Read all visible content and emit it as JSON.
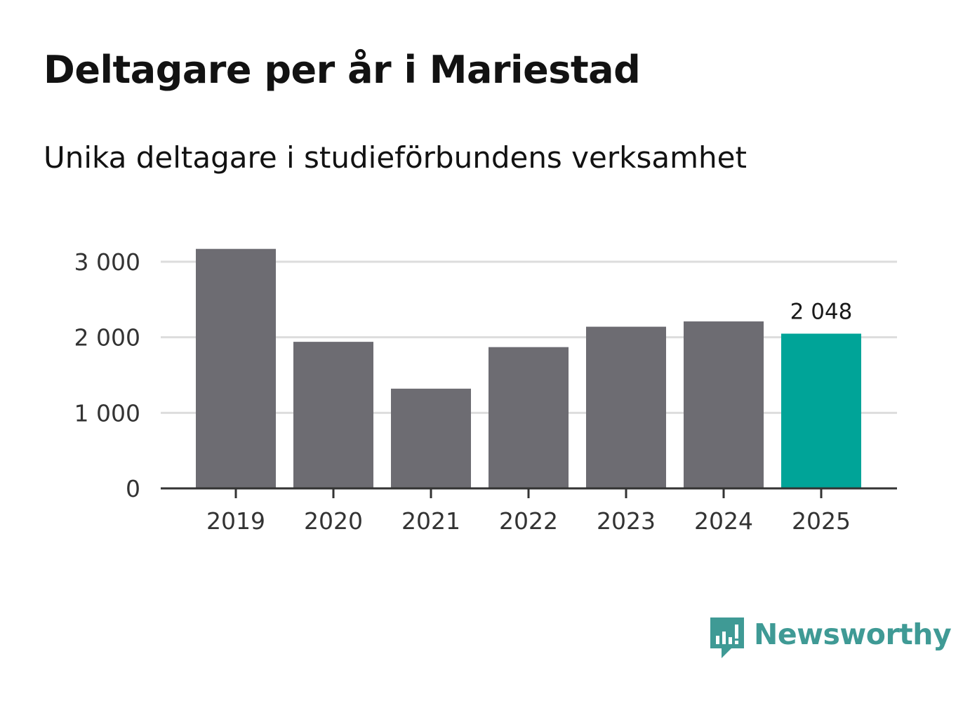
{
  "title": "Deltagare per år i Mariestad",
  "subtitle": "Unika deltagare i studieförbundens verksamhet",
  "chart_data": {
    "type": "bar",
    "categories": [
      "2019",
      "2020",
      "2021",
      "2022",
      "2023",
      "2024",
      "2025"
    ],
    "values": [
      3170,
      1940,
      1320,
      1870,
      2140,
      2210,
      2048
    ],
    "ylim": [
      0,
      3000
    ],
    "yticks": [
      0,
      1000,
      2000,
      3000
    ],
    "ytick_labels": [
      "0",
      "1 000",
      "2 000",
      "3 000"
    ],
    "highlight_index": 6,
    "data_labels": [
      {
        "index": 6,
        "text": "2 048"
      }
    ],
    "xlabel": "",
    "ylabel": "",
    "grid": true,
    "colors": {
      "bar": "#6d6c72",
      "highlight": "#00a498",
      "grid": "#dddddd",
      "axis": "#333333"
    }
  },
  "brand": {
    "name": "Newsworthy",
    "color": "#3f9a95",
    "icon": "bar-chart-speech-bubble-icon"
  }
}
